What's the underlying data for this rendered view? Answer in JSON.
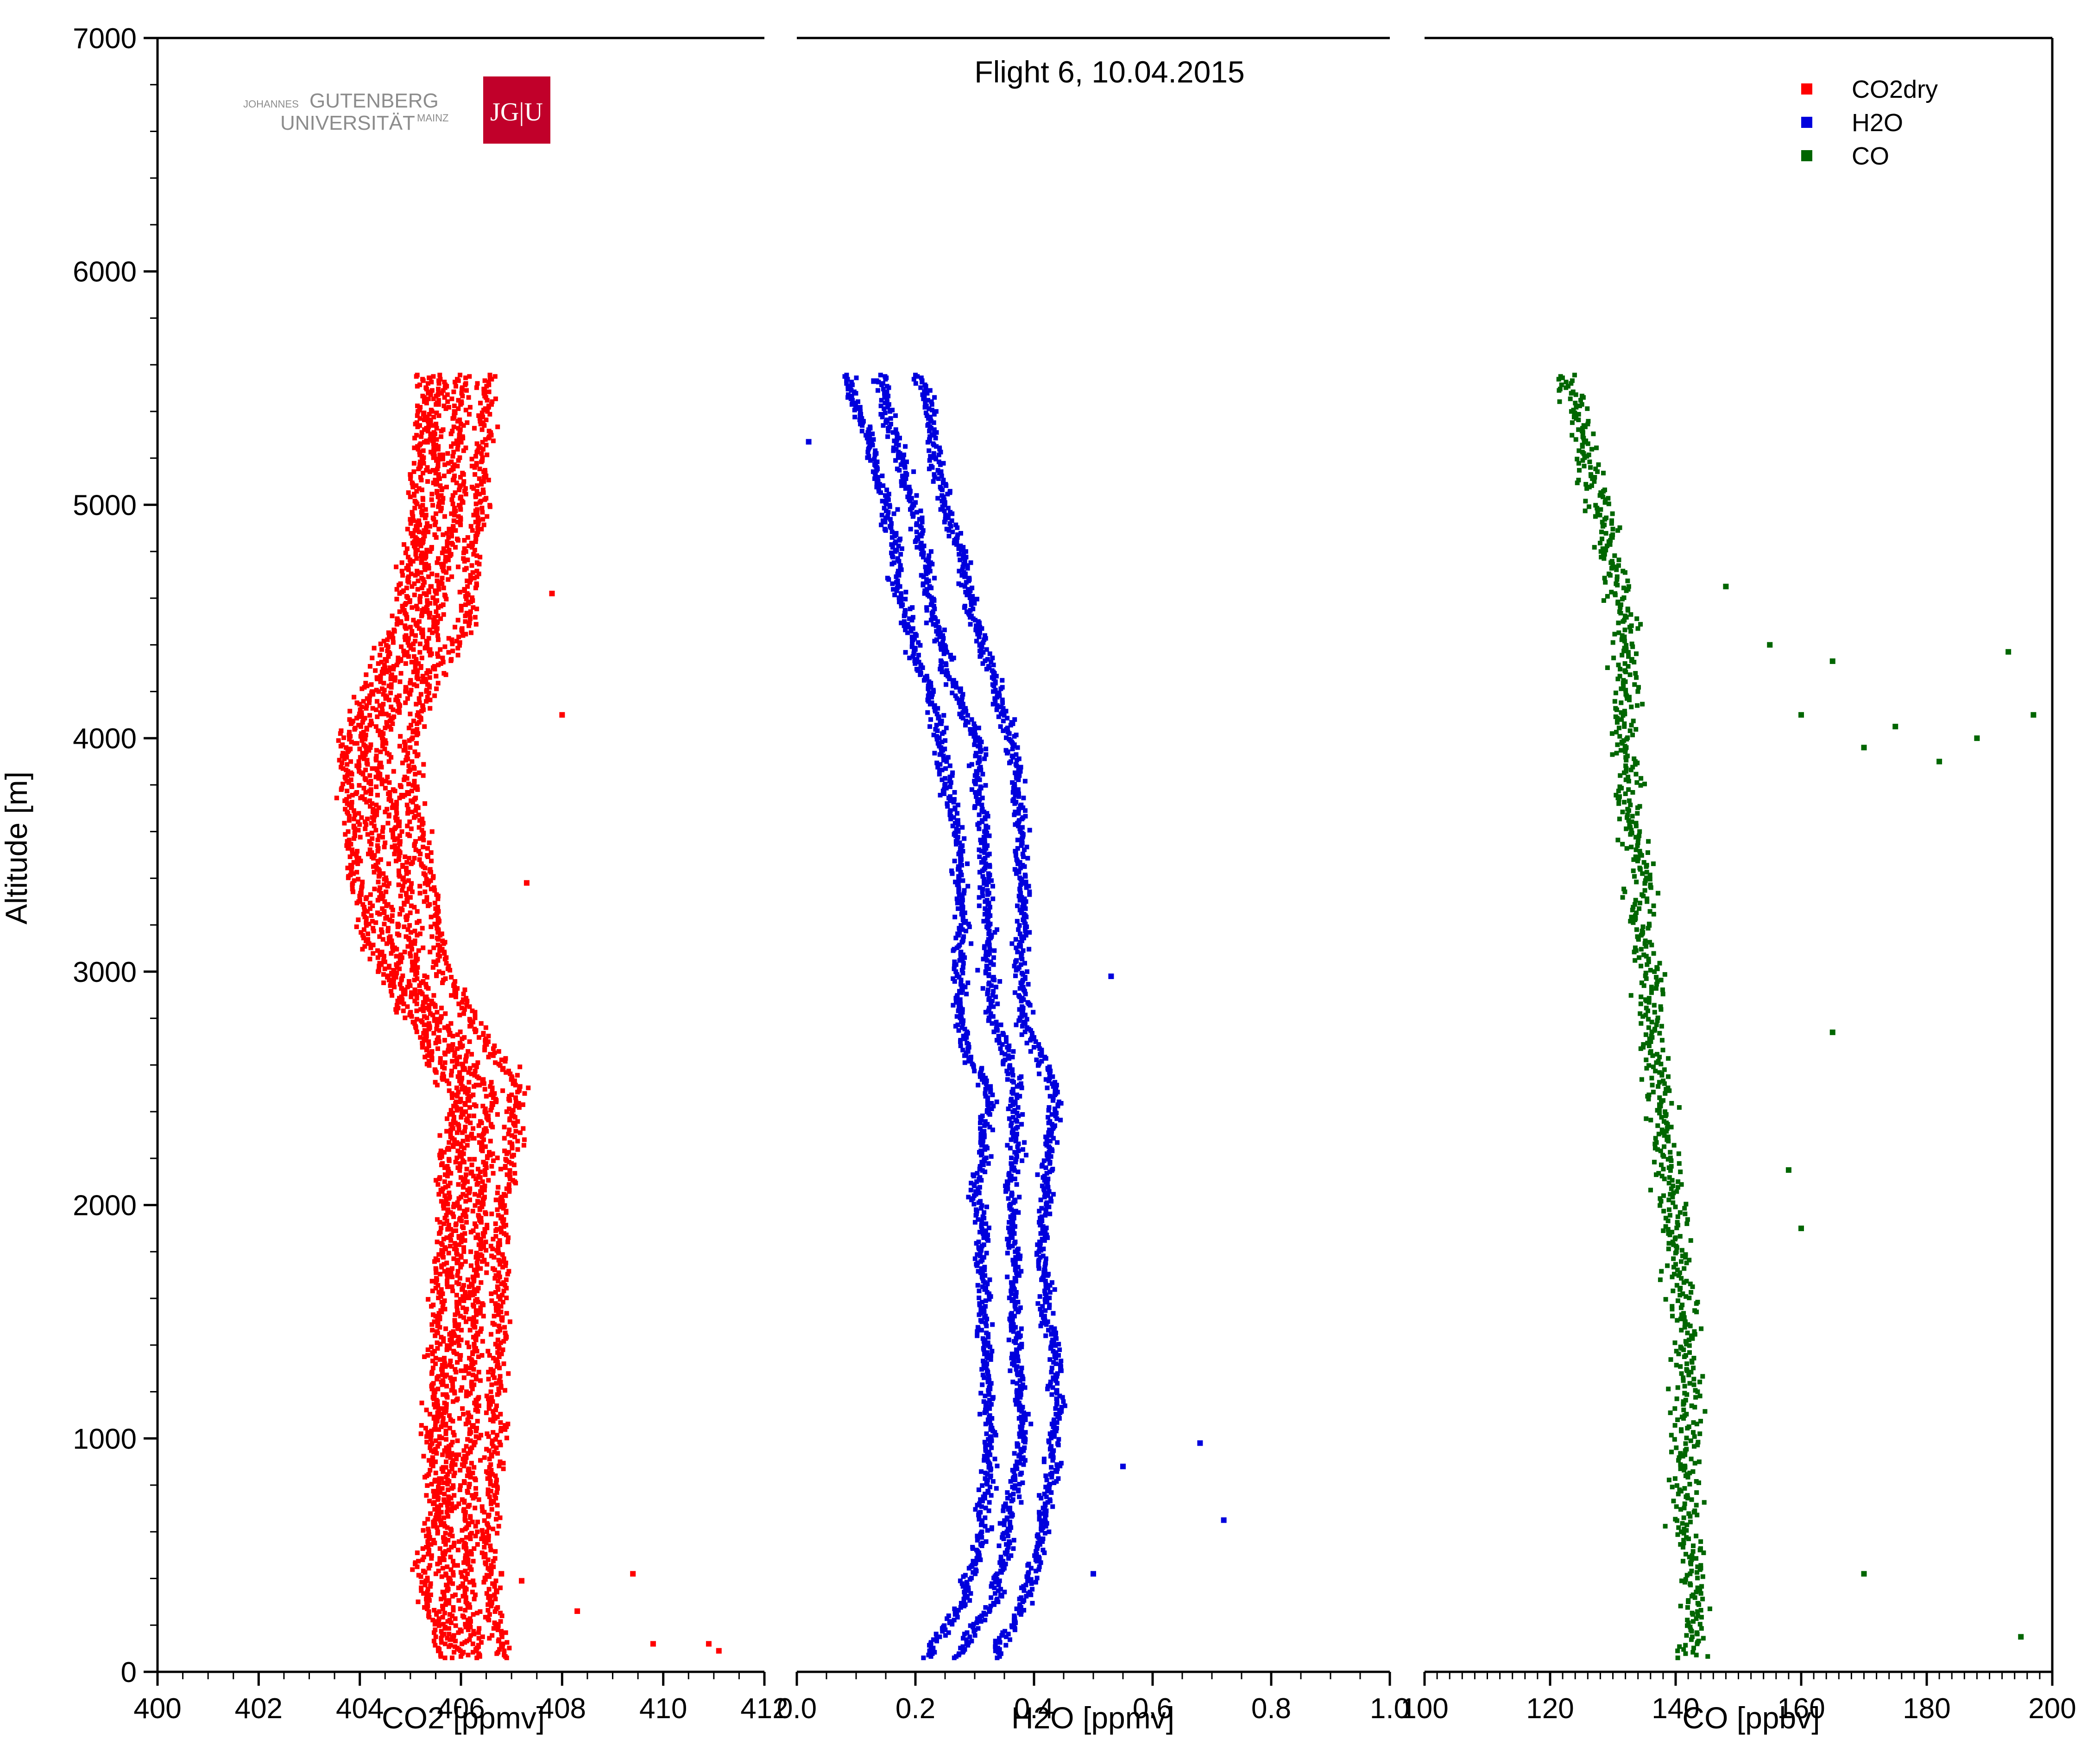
{
  "title": "Flight 6, 10.04.2015",
  "logo": {
    "line1_small": "JOHANNES",
    "line1_big": "GUTENBERG",
    "line2_big": "UNIVERSITÄT",
    "line2_small": "MAINZ",
    "mark": "JG|U",
    "color": "#c1002a"
  },
  "legend": [
    {
      "label": "CO2dry",
      "color": "#ff0000"
    },
    {
      "label": "H2O",
      "color": "#0000dd"
    },
    {
      "label": "CO",
      "color": "#006600"
    }
  ],
  "chart_data": [
    {
      "type": "scatter",
      "xlabel": "CO2 [ppmv]",
      "ylabel": "Altitude [m]",
      "xlim": [
        400,
        412
      ],
      "ylim": [
        0,
        7000
      ],
      "xticks": [
        "400",
        "402",
        "404",
        "406",
        "408",
        "410",
        "412"
      ],
      "yticks": [
        "0",
        "1000",
        "2000",
        "3000",
        "4000",
        "5000",
        "6000",
        "7000"
      ],
      "series": [
        {
          "name": "CO2dry",
          "color": "#ff0000",
          "profile": [
            [
              406.0,
              60
            ],
            [
              405.7,
              300
            ],
            [
              405.7,
              600
            ],
            [
              405.8,
              1000
            ],
            [
              405.9,
              1500
            ],
            [
              406.0,
              2000
            ],
            [
              406.2,
              2500
            ],
            [
              405.5,
              2750
            ],
            [
              404.8,
              3000
            ],
            [
              404.3,
              3500
            ],
            [
              404.0,
              4000
            ],
            [
              405.2,
              4500
            ],
            [
              405.5,
              5000
            ],
            [
              405.6,
              5560
            ]
          ],
          "offsets": [
            -0.35,
            0.0,
            0.4,
            0.9
          ],
          "outliers": [
            [
              406.8,
              420
            ],
            [
              407.2,
              390
            ],
            [
              408.3,
              260
            ],
            [
              409.4,
              420
            ],
            [
              409.8,
              120
            ],
            [
              410.9,
              120
            ],
            [
              411.1,
              90
            ],
            [
              407.3,
              3380
            ],
            [
              408.0,
              4100
            ],
            [
              407.8,
              4620
            ]
          ]
        }
      ]
    },
    {
      "type": "scatter",
      "xlabel": "H2O [ppmv]",
      "ylabel": "",
      "xlim": [
        0.0,
        1.0
      ],
      "ylim": [
        0,
        7000
      ],
      "xticks": [
        "0.0",
        "0.2",
        "0.4",
        "0.6",
        "0.8",
        "1.0"
      ],
      "yticks": [],
      "series": [
        {
          "name": "H2O",
          "color": "#0000dd",
          "profile": [
            [
              0.27,
              60
            ],
            [
              0.33,
              300
            ],
            [
              0.36,
              600
            ],
            [
              0.38,
              1000
            ],
            [
              0.37,
              1500
            ],
            [
              0.36,
              2000
            ],
            [
              0.37,
              2500
            ],
            [
              0.33,
              2750
            ],
            [
              0.32,
              3000
            ],
            [
              0.32,
              3500
            ],
            [
              0.3,
              4000
            ],
            [
              0.24,
              4500
            ],
            [
              0.2,
              5000
            ],
            [
              0.14,
              5560
            ]
          ],
          "offsets": [
            -0.05,
            0.0,
            0.06
          ],
          "outliers": [
            [
              0.72,
              650
            ],
            [
              0.68,
              980
            ],
            [
              0.53,
              2980
            ],
            [
              0.02,
              5270
            ],
            [
              0.13,
              5530
            ],
            [
              0.5,
              420
            ],
            [
              0.55,
              880
            ]
          ]
        }
      ]
    },
    {
      "type": "scatter",
      "xlabel": "CO [ppbv]",
      "ylabel": "",
      "xlim": [
        100,
        200
      ],
      "ylim": [
        0,
        7000
      ],
      "xticks": [
        "100",
        "120",
        "140",
        "160",
        "180",
        "200"
      ],
      "yticks": [],
      "series": [
        {
          "name": "CO",
          "color": "#006600",
          "profile": [
            [
              143,
              60
            ],
            [
              143,
              300
            ],
            [
              142,
              600
            ],
            [
              142,
              1000
            ],
            [
              142,
              1500
            ],
            [
              139,
              2000
            ],
            [
              137,
              2500
            ],
            [
              136,
              2750
            ],
            [
              136,
              3000
            ],
            [
              134,
              3500
            ],
            [
              132,
              4000
            ],
            [
              132,
              4500
            ],
            [
              128,
              5000
            ],
            [
              123,
              5560
            ]
          ],
          "offsets": [
            0
          ],
          "outliers": [
            [
              197,
              4100
            ],
            [
              193,
              4370
            ],
            [
              188,
              4000
            ],
            [
              182,
              3900
            ],
            [
              175,
              4050
            ],
            [
              170,
              3960
            ],
            [
              160,
              4100
            ],
            [
              165,
              4330
            ],
            [
              155,
              4400
            ],
            [
              148,
              4650
            ],
            [
              165,
              2740
            ],
            [
              170,
              420
            ],
            [
              195,
              150
            ],
            [
              158,
              2150
            ],
            [
              160,
              1900
            ]
          ]
        }
      ]
    }
  ]
}
